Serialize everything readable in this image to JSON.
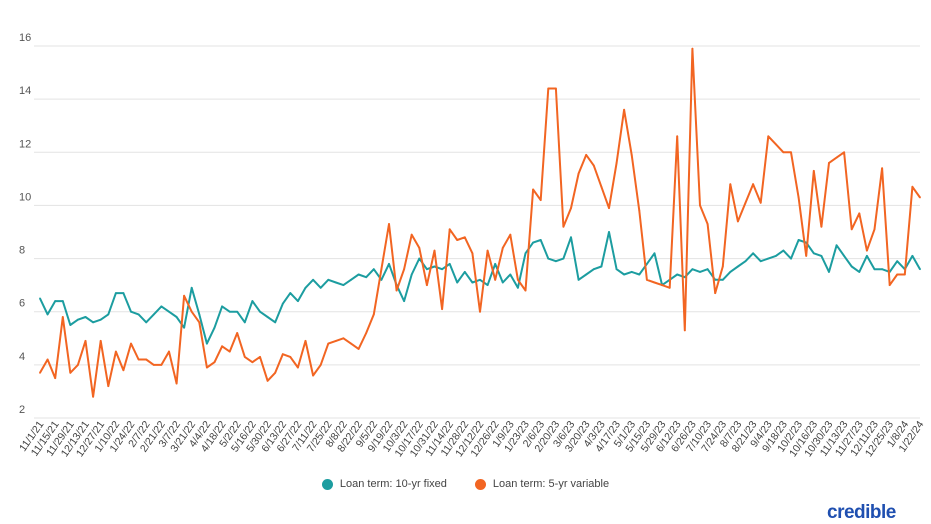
{
  "chart_data": {
    "type": "line",
    "x": [
      "11/1/21",
      "11/8/21",
      "11/15/21",
      "11/22/21",
      "11/29/21",
      "12/6/21",
      "12/13/21",
      "12/20/21",
      "12/27/21",
      "1/3/22",
      "1/10/22",
      "1/17/22",
      "1/24/22",
      "1/31/22",
      "2/7/22",
      "2/14/22",
      "2/21/22",
      "2/28/22",
      "3/7/22",
      "3/14/22",
      "3/21/22",
      "3/28/22",
      "4/4/22",
      "4/11/22",
      "4/18/22",
      "4/25/22",
      "5/2/22",
      "5/9/22",
      "5/16/22",
      "5/23/22",
      "5/30/22",
      "6/6/22",
      "6/13/22",
      "6/20/22",
      "6/27/22",
      "7/4/22",
      "7/11/22",
      "7/18/22",
      "7/25/22",
      "8/1/22",
      "8/8/22",
      "8/15/22",
      "8/22/22",
      "8/29/22",
      "9/5/22",
      "9/12/22",
      "9/19/22",
      "9/26/22",
      "10/3/22",
      "10/10/22",
      "10/17/22",
      "10/24/22",
      "10/31/22",
      "11/7/22",
      "11/14/22",
      "11/21/22",
      "11/28/22",
      "12/5/22",
      "12/12/22",
      "12/19/22",
      "12/26/22",
      "1/2/23",
      "1/9/23",
      "1/16/23",
      "1/23/23",
      "1/30/23",
      "2/6/23",
      "2/13/23",
      "2/20/23",
      "2/27/23",
      "3/6/23",
      "3/13/23",
      "3/20/23",
      "3/27/23",
      "4/3/23",
      "4/10/23",
      "4/17/23",
      "4/24/23",
      "5/1/23",
      "5/8/23",
      "5/15/23",
      "5/22/23",
      "5/29/23",
      "6/5/23",
      "6/12/23",
      "6/19/23",
      "6/26/23",
      "7/3/23",
      "7/10/23",
      "7/17/23",
      "7/24/23",
      "7/31/23",
      "8/7/23",
      "8/14/23",
      "8/21/23",
      "8/28/23",
      "9/4/23",
      "9/11/23",
      "9/18/23",
      "9/25/23",
      "10/2/23",
      "10/9/23",
      "10/16/23",
      "10/23/23",
      "10/30/23",
      "11/6/23",
      "11/13/23",
      "11/20/23",
      "11/27/23",
      "12/4/23",
      "12/11/23",
      "12/18/23",
      "12/25/23",
      "1/1/24",
      "1/8/24",
      "1/15/24",
      "1/22/24"
    ],
    "x_tick_labels": [
      "11/1/21",
      "11/15/21",
      "11/29/21",
      "12/13/21",
      "12/27/21",
      "1/10/22",
      "1/24/22",
      "2/7/22",
      "2/21/22",
      "3/7/22",
      "3/21/22",
      "4/4/22",
      "4/18/22",
      "5/2/22",
      "5/16/22",
      "5/30/22",
      "6/13/22",
      "6/27/22",
      "7/11/22",
      "7/25/22",
      "8/8/22",
      "8/22/22",
      "9/5/22",
      "9/19/22",
      "10/3/22",
      "10/17/22",
      "10/31/22",
      "11/14/22",
      "11/28/22",
      "12/12/22",
      "12/26/22",
      "1/9/23",
      "1/23/23",
      "2/6/23",
      "2/20/23",
      "3/6/23",
      "3/20/23",
      "4/3/23",
      "4/17/23",
      "5/1/23",
      "5/15/23",
      "5/29/23",
      "6/12/23",
      "6/26/23",
      "7/10/23",
      "7/24/23",
      "8/7/23",
      "8/21/23",
      "9/4/23",
      "9/18/23",
      "10/2/23",
      "10/16/23",
      "10/30/23",
      "11/13/23",
      "11/27/23",
      "12/11/23",
      "12/25/23",
      "1/8/24",
      "1/22/24"
    ],
    "y_ticks": [
      2,
      4,
      6,
      8,
      10,
      12,
      14,
      16
    ],
    "ylim": [
      2,
      16
    ],
    "grid": "horizontal",
    "legend_position": "bottom",
    "series": [
      {
        "name": "Loan term: 10-yr fixed",
        "color": "#1c9da0",
        "values": [
          6.5,
          5.9,
          6.4,
          6.4,
          5.5,
          5.7,
          5.8,
          5.6,
          5.7,
          5.9,
          6.7,
          6.7,
          6.0,
          5.9,
          5.6,
          5.9,
          6.2,
          6.0,
          5.8,
          5.4,
          6.9,
          5.9,
          4.8,
          5.4,
          6.2,
          6.0,
          6.0,
          5.6,
          6.4,
          6.0,
          5.8,
          5.6,
          6.3,
          6.7,
          6.4,
          6.9,
          7.2,
          6.9,
          7.2,
          7.1,
          7.0,
          7.2,
          7.4,
          7.3,
          7.6,
          7.2,
          7.8,
          7.0,
          6.4,
          7.4,
          8.0,
          7.6,
          7.7,
          7.6,
          7.8,
          7.1,
          7.5,
          7.1,
          7.2,
          7.0,
          7.8,
          7.1,
          7.4,
          6.9,
          8.2,
          8.6,
          8.7,
          8.0,
          7.9,
          8.0,
          8.8,
          7.2,
          7.4,
          7.6,
          7.7,
          9.0,
          7.6,
          7.4,
          7.5,
          7.4,
          7.8,
          8.2,
          7.0,
          7.2,
          7.4,
          7.3,
          7.6,
          7.5,
          7.6,
          7.2,
          7.2,
          7.5,
          7.7,
          7.9,
          8.2,
          7.9,
          8.0,
          8.1,
          8.3,
          8.0,
          8.7,
          8.6,
          8.2,
          8.1,
          7.5,
          8.5,
          8.1,
          7.7,
          7.5,
          8.1,
          7.6,
          7.6,
          7.5,
          7.9,
          7.6,
          8.1,
          7.6
        ]
      },
      {
        "name": "Loan term: 5-yr variable",
        "color": "#f26522",
        "values": [
          3.7,
          4.2,
          3.5,
          5.8,
          3.7,
          4.0,
          4.9,
          2.8,
          4.9,
          3.2,
          4.5,
          3.8,
          4.8,
          4.2,
          4.2,
          4.0,
          4.0,
          4.5,
          3.3,
          6.6,
          6.0,
          5.6,
          3.9,
          4.1,
          4.7,
          4.5,
          5.2,
          4.3,
          4.1,
          4.3,
          3.4,
          3.7,
          4.4,
          4.3,
          3.9,
          4.9,
          3.6,
          4.0,
          4.8,
          4.9,
          5.0,
          4.8,
          4.6,
          5.2,
          5.9,
          7.6,
          9.3,
          6.8,
          7.6,
          8.9,
          8.4,
          7.0,
          8.3,
          6.1,
          9.1,
          8.7,
          8.8,
          8.2,
          6.0,
          8.3,
          7.2,
          8.4,
          8.9,
          7.2,
          6.8,
          10.6,
          10.2,
          14.4,
          14.4,
          9.2,
          9.9,
          11.2,
          11.9,
          11.5,
          10.7,
          9.9,
          11.6,
          13.6,
          11.9,
          9.8,
          7.2,
          7.1,
          7.0,
          6.9,
          12.6,
          5.3,
          15.9,
          10.0,
          9.3,
          6.7,
          7.7,
          10.8,
          9.4,
          10.1,
          10.8,
          10.1,
          12.6,
          12.3,
          12.0,
          12.0,
          10.3,
          8.1,
          11.3,
          9.2,
          11.6,
          11.8,
          12.0,
          9.1,
          9.7,
          8.3,
          9.1,
          11.4,
          7.0,
          7.4,
          7.4,
          10.7,
          10.3
        ]
      }
    ]
  },
  "legend": {
    "items": [
      {
        "label": "Loan term: 10-yr fixed",
        "color": "#1c9da0"
      },
      {
        "label": "Loan term: 5-yr variable",
        "color": "#f26522"
      }
    ]
  },
  "brand": {
    "logo_text": "credible",
    "color": "#1f4fb0"
  }
}
